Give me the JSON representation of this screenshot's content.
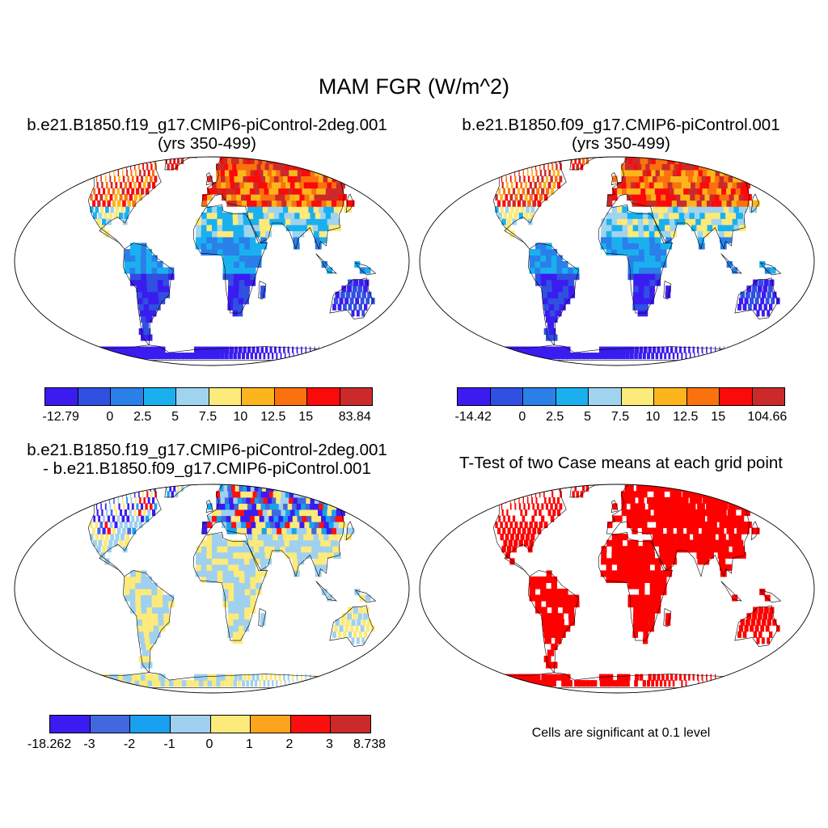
{
  "main_title": "MAM FGR (W/m^2)",
  "panels": [
    {
      "title_line1": "b.e21.B1850.f19_g17.CMIP6-piControl-2deg.001",
      "title_line2": "(yrs 350-499)"
    },
    {
      "title_line1": "b.e21.B1850.f09_g17.CMIP6-piControl.001",
      "title_line2": "(yrs 350-499)"
    },
    {
      "title_line1": "b.e21.B1850.f19_g17.CMIP6-piControl-2deg.001",
      "title_line2": "- b.e21.B1850.f09_g17.CMIP6-piControl.001"
    },
    {
      "title_line1": "T-Test of two Case means at each grid point",
      "title_line2": ""
    }
  ],
  "significance_note": "Cells are significant at 0.1 level",
  "colorbars": [
    {
      "colors": [
        "#3a1cf0",
        "#2f50e0",
        "#2a7fe8",
        "#1ab0f0",
        "#9fd4ef",
        "#fcea7a",
        "#fcb51c",
        "#f9720d",
        "#fb0a0a",
        "#cc2a2a"
      ],
      "labels": [
        "-12.79",
        "0",
        "2.5",
        "5",
        "7.5",
        "10",
        "12.5",
        "15",
        "83.84"
      ]
    },
    {
      "colors": [
        "#3a1cf0",
        "#2f50e0",
        "#2a7fe8",
        "#1ab0f0",
        "#9fd4ef",
        "#fcea7a",
        "#fcb51c",
        "#f9720d",
        "#fb0a0a",
        "#cc2a2a"
      ],
      "labels": [
        "-14.42",
        "0",
        "2.5",
        "5",
        "7.5",
        "10",
        "12.5",
        "15",
        "104.66"
      ]
    },
    {
      "colors": [
        "#3a1cf0",
        "#4268e0",
        "#1aa0f0",
        "#9fd0ef",
        "#fcea7a",
        "#fca51c",
        "#fb1010",
        "#cc2a2a"
      ],
      "labels": [
        "-18.262",
        "-3",
        "-2",
        "-1",
        "0",
        "1",
        "2",
        "3",
        "8.738"
      ]
    }
  ],
  "map_colors": {
    "ocean": "#ffffff",
    "significant": "#ff0000",
    "coast": "#000000"
  }
}
